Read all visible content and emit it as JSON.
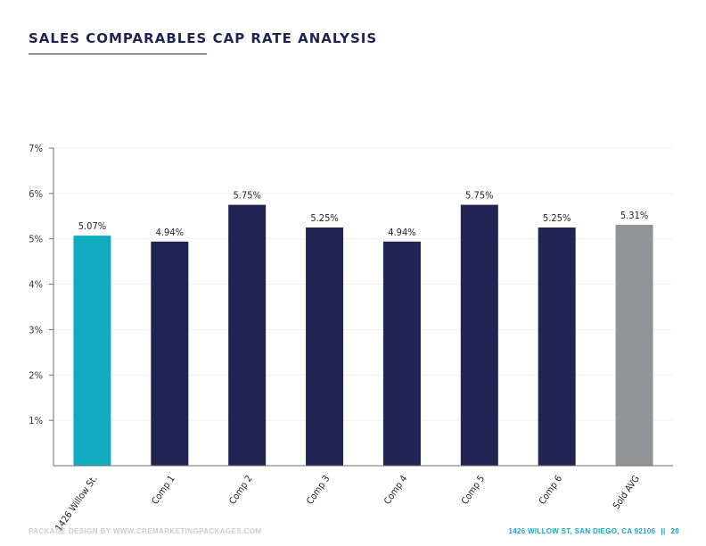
{
  "header": {
    "title": "SALES COMPARABLES CAP RATE ANALYSIS"
  },
  "footer": {
    "credit": "PACKAGE DESIGN BY WWW.CREMARKETINGPACKAGES.COM",
    "address": "1426 WILLOW ST, SAN DIEGO, CA 92106",
    "separator": "||",
    "page_number": "20"
  },
  "chart_data": {
    "type": "bar",
    "categories": [
      "1426 Willow St.",
      "Comp 1",
      "Comp 2",
      "Comp 3",
      "Comp 4",
      "Comp 5",
      "Comp 6",
      "Sold AVG"
    ],
    "values": [
      5.07,
      4.94,
      5.75,
      5.25,
      4.94,
      5.75,
      5.25,
      5.31
    ],
    "data_labels": [
      "5.07%",
      "4.94%",
      "5.75%",
      "5.25%",
      "4.94%",
      "5.75%",
      "5.25%",
      "5.31%"
    ],
    "ylim": [
      0,
      7
    ],
    "yticks": [
      1,
      2,
      3,
      4,
      5,
      6,
      7
    ],
    "ytick_labels": [
      "1%",
      "2%",
      "3%",
      "4%",
      "5%",
      "6%",
      "7%"
    ],
    "grid": true,
    "colors": {
      "subject": "#12acc2",
      "comps": "#1f2453",
      "average": "#929396",
      "axis": "#6f6f6f"
    }
  }
}
